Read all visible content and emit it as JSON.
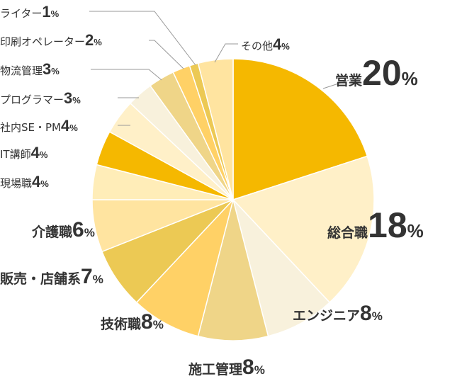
{
  "chart_data": {
    "type": "pie",
    "title": "",
    "unit": "%",
    "start": "12 o'clock",
    "direction": "clockwise",
    "slices": [
      {
        "label": "営業",
        "value": 20,
        "color": "#F5B800"
      },
      {
        "label": "総合職",
        "value": 18,
        "color": "#FFF0C8"
      },
      {
        "label": "エンジニア",
        "value": 8,
        "color": "#F8F1DC"
      },
      {
        "label": "施工管理",
        "value": 8,
        "color": "#EFD588"
      },
      {
        "label": "技術職",
        "value": 8,
        "color": "#FFD166"
      },
      {
        "label": "販売・店舗系",
        "value": 7,
        "color": "#ECC954"
      },
      {
        "label": "介護職",
        "value": 6,
        "color": "#FFE4A0"
      },
      {
        "label": "現場職",
        "value": 4,
        "color": "#FFEDB8"
      },
      {
        "label": "IT講師",
        "value": 4,
        "color": "#F5B800"
      },
      {
        "label": "社内SE・PM",
        "value": 4,
        "color": "#FFF0C8"
      },
      {
        "label": "プログラマー",
        "value": 3,
        "color": "#F8F1DC"
      },
      {
        "label": "物流管理",
        "value": 3,
        "color": "#EFD588"
      },
      {
        "label": "印刷オペレーター",
        "value": 2,
        "color": "#FFD166"
      },
      {
        "label": "ライター",
        "value": 1,
        "color": "#ECC954"
      },
      {
        "label": "その他",
        "value": 4,
        "color": "#FFE4A0"
      }
    ]
  },
  "colors": {
    "text": "#333333",
    "leader": "#999999",
    "slice_border": "#ffffff"
  }
}
